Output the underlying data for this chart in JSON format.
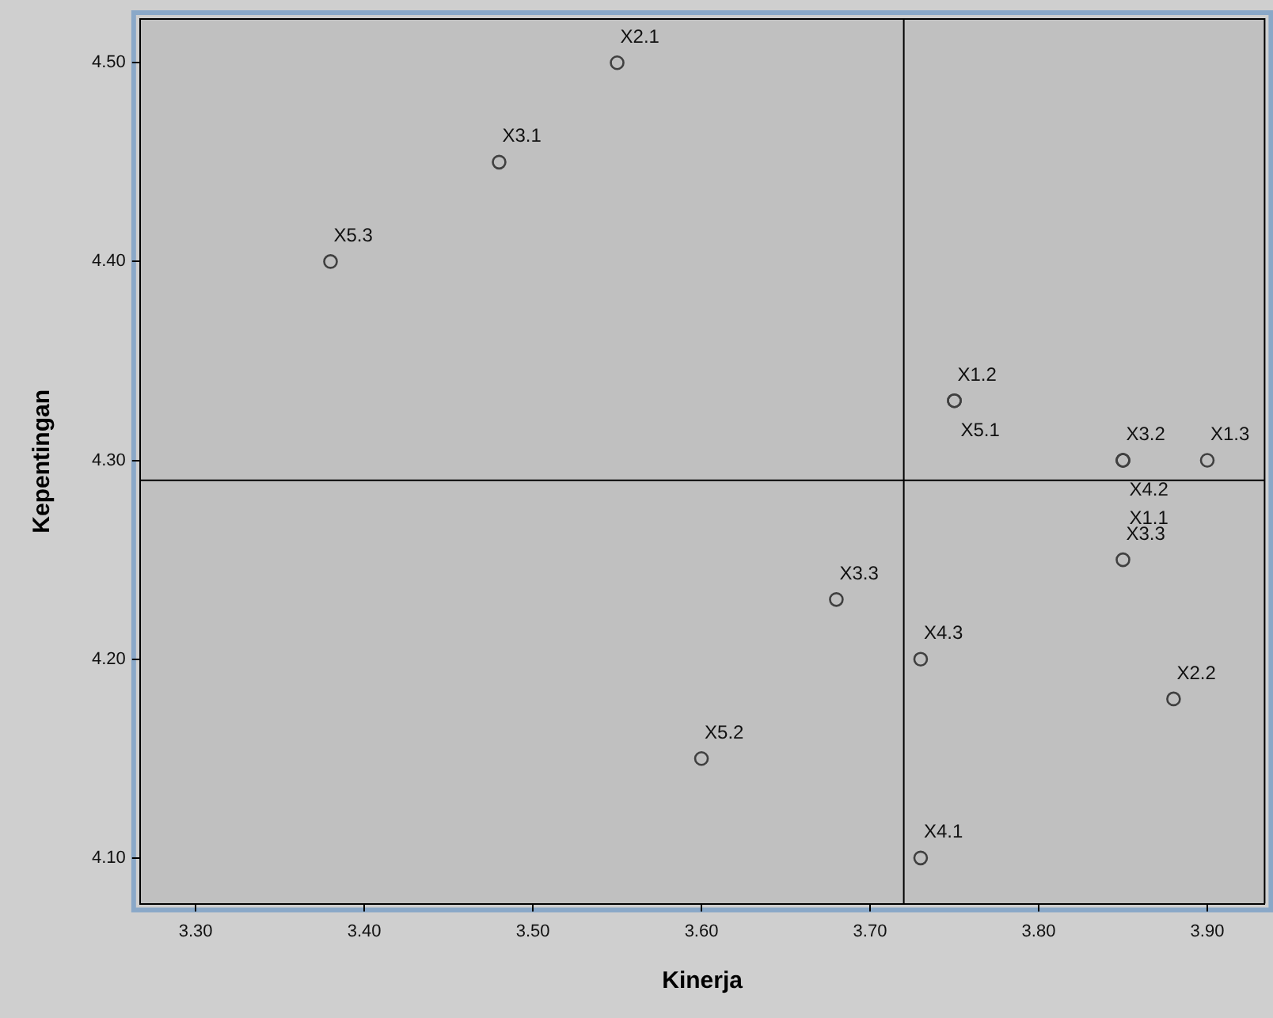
{
  "chart_data": {
    "type": "scatter",
    "xlabel": "Kinerja",
    "ylabel": "Kepentingan",
    "x": [
      3.55,
      3.48,
      3.38,
      3.75,
      3.75,
      3.85,
      3.85,
      3.85,
      3.9,
      3.85,
      3.68,
      3.73,
      3.88,
      3.6,
      3.73
    ],
    "series": [
      {
        "color": "#404040",
        "values": [
          4.5,
          4.45,
          4.4,
          4.33,
          4.33,
          4.3,
          4.3,
          4.3,
          4.3,
          4.25,
          4.23,
          4.2,
          4.18,
          4.15,
          4.1
        ],
        "value_labels": [
          "X2.1",
          "X3.1",
          "X5.3",
          "X1.2",
          "X5.1",
          "X3.2",
          "X4.2",
          "X1.1",
          "X1.3",
          "X3.3",
          "X3.3",
          "X4.3",
          "X2.2",
          "X5.2",
          "X4.1"
        ]
      }
    ],
    "xlim": [
      3.267,
      3.934
    ],
    "ylim": [
      4.077,
      4.522
    ],
    "xticks": [
      {
        "value": 3.3,
        "label": "3.30"
      },
      {
        "value": 3.4,
        "label": "3.40"
      },
      {
        "value": 3.5,
        "label": "3.50"
      },
      {
        "value": 3.6,
        "label": "3.60"
      },
      {
        "value": 3.7,
        "label": "3.70"
      },
      {
        "value": 3.8,
        "label": "3.80"
      },
      {
        "value": 3.9,
        "label": "3.90"
      }
    ],
    "yticks": [
      {
        "value": 4.1,
        "label": "4.10"
      },
      {
        "value": 4.2,
        "label": "4.20"
      },
      {
        "value": 4.3,
        "label": "4.30"
      },
      {
        "value": 4.4,
        "label": "4.40"
      },
      {
        "value": 4.5,
        "label": "4.50"
      }
    ],
    "ref_lines": [
      {
        "axis": "x",
        "value": 3.72,
        "color": "#000000"
      },
      {
        "axis": "y",
        "value": 4.29,
        "color": "#000000"
      }
    ],
    "grid": false,
    "legend": false,
    "marker": "circle"
  }
}
